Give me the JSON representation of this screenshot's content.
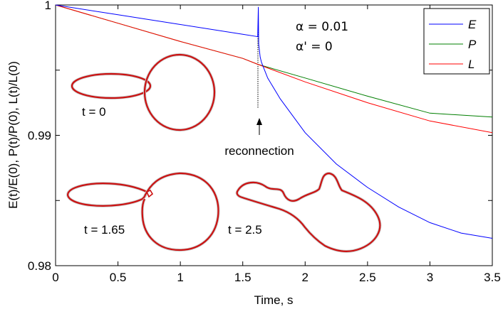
{
  "chart_data": {
    "type": "line",
    "xlabel": "Time, s",
    "ylabel": "E(t)/E(0), P(t)/P(0), L(t)/L(0)",
    "xlim": [
      0,
      3.5
    ],
    "ylim": [
      0.98,
      1
    ],
    "x_ticks": [
      "0",
      "0.5",
      "1",
      "1.5",
      "2",
      "2.5",
      "3",
      "3.5"
    ],
    "y_ticks": [
      "0.98",
      "0.99",
      "1"
    ],
    "legend_position": "top-right",
    "series": [
      {
        "name": "E",
        "color": "#0000ff",
        "x": [
          0,
          0.5,
          1.0,
          1.5,
          1.62,
          1.625,
          1.628,
          1.64,
          1.65,
          1.7,
          1.8,
          2.0,
          2.25,
          2.5,
          2.75,
          3.0,
          3.25,
          3.5
        ],
        "y": [
          1.0,
          0.99925,
          0.9985,
          0.99775,
          0.99757,
          0.99985,
          0.997,
          0.996,
          0.9956,
          0.9944,
          0.9928,
          0.9902,
          0.9878,
          0.986,
          0.9845,
          0.9833,
          0.9825,
          0.9821
        ]
      },
      {
        "name": "P",
        "color": "#007f00",
        "x": [
          0,
          0.5,
          1.0,
          1.5,
          1.62,
          2.0,
          2.5,
          3.0,
          3.5
        ],
        "y": [
          1.0,
          0.9986,
          0.9972,
          0.9959,
          0.99545,
          0.9944,
          0.993,
          0.9917,
          0.9914
        ]
      },
      {
        "name": "L",
        "color": "#ff0000",
        "x": [
          0,
          0.5,
          1.0,
          1.5,
          1.62,
          2.0,
          2.5,
          3.0,
          3.5
        ],
        "y": [
          1.0,
          0.9986,
          0.9972,
          0.9959,
          0.99545,
          0.9941,
          0.9925,
          0.9911,
          0.9902
        ]
      }
    ],
    "annotations": {
      "alpha": "α = 0.01",
      "alpha_prime": "α' = 0",
      "reconnection": "reconnection",
      "reconnection_x": 1.62,
      "t0": "t = 0",
      "t165": "t = 1.65",
      "t25": "t = 2.5"
    }
  }
}
